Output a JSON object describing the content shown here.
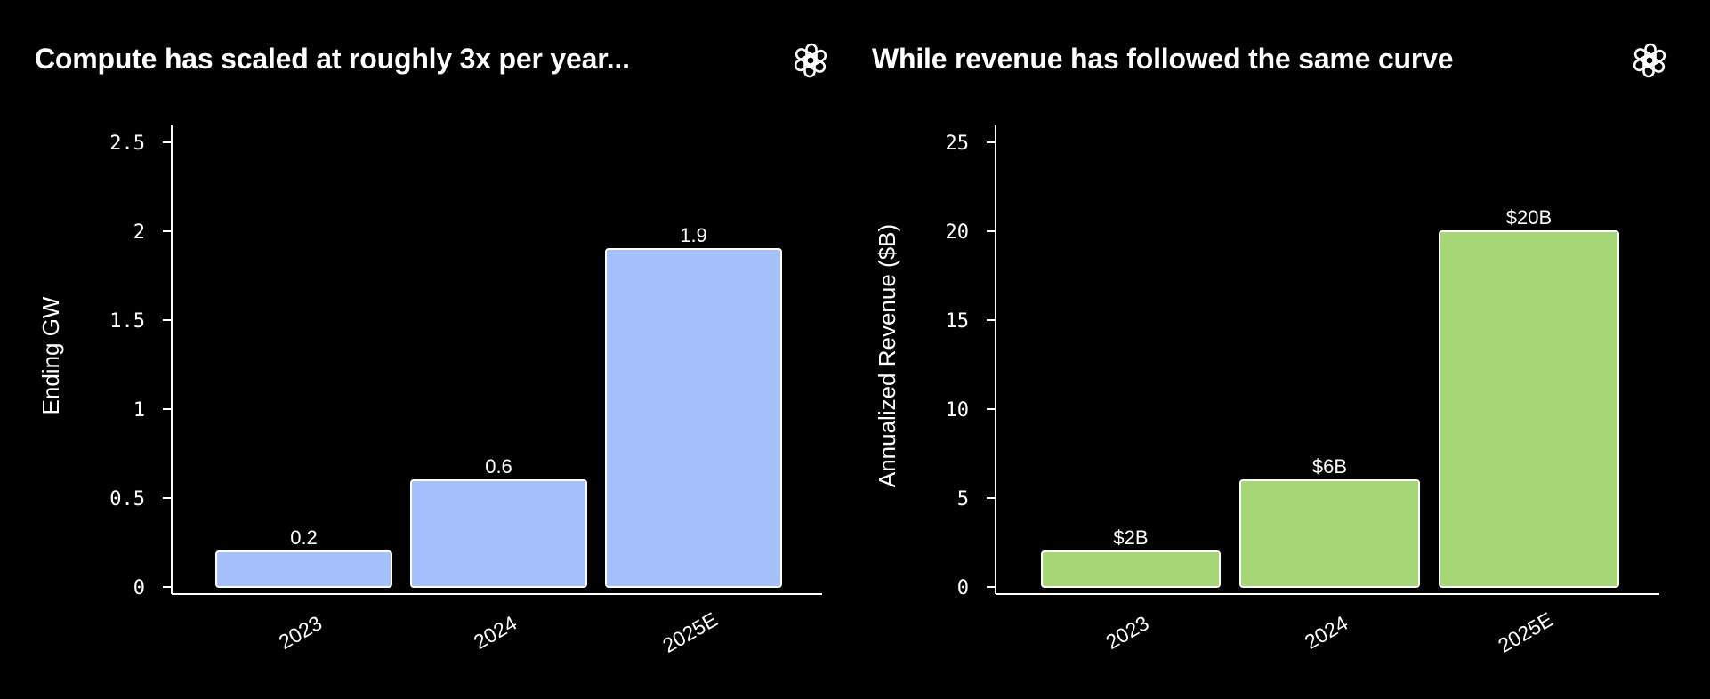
{
  "colors": {
    "background": "#000000",
    "compute_bar": "#a4bffa",
    "revenue_bar": "#a6d676",
    "bar_stroke": "#ffffff",
    "axis": "#ffffff"
  },
  "logo_icon": "openai-logo-icon",
  "chart_data": [
    {
      "type": "bar",
      "title": "Compute has scaled at roughly 3x per year...",
      "xlabel": "",
      "ylabel": "Ending GW",
      "categories": [
        "2023",
        "2024",
        "2025E"
      ],
      "values": [
        0.2,
        0.6,
        1.9
      ],
      "value_labels": [
        "0.2",
        "0.6",
        "1.9"
      ],
      "ylim": [
        0,
        2.5
      ],
      "yticks": [
        0,
        0.5,
        1,
        1.5,
        2,
        2.5
      ],
      "ytick_labels": [
        "0",
        "0.5",
        "1",
        "1.5",
        "2",
        "2.5"
      ],
      "grid": false,
      "legend": "none",
      "color": "#a4bffa"
    },
    {
      "type": "bar",
      "title": "While revenue has followed the same curve",
      "xlabel": "",
      "ylabel": "Annualized Revenue ($B)",
      "categories": [
        "2023",
        "2024",
        "2025E"
      ],
      "values": [
        2,
        6,
        20
      ],
      "value_labels": [
        "$2B",
        "$6B",
        "$20B"
      ],
      "ylim": [
        0,
        25
      ],
      "yticks": [
        0,
        5,
        10,
        15,
        20,
        25
      ],
      "ytick_labels": [
        "0",
        "5",
        "10",
        "15",
        "20",
        "25"
      ],
      "grid": false,
      "legend": "none",
      "color": "#a6d676"
    }
  ]
}
